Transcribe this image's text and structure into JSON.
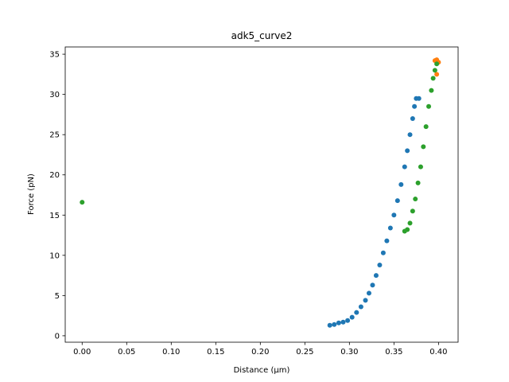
{
  "chart_data": {
    "type": "scatter",
    "title": "adk5_curve2",
    "x_label": "Distance (μm)",
    "y_label": "Force (pN)",
    "xlim": [
      -0.019,
      0.422
    ],
    "ylim": [
      -0.8,
      35.9
    ],
    "xticks": [
      {
        "value": 0,
        "label": "0.00"
      },
      {
        "value": 0.05,
        "label": "0.05"
      },
      {
        "value": 0.1,
        "label": "0.10"
      },
      {
        "value": 0.15,
        "label": "0.15"
      },
      {
        "value": 0.2,
        "label": "0.20"
      },
      {
        "value": 0.25,
        "label": "0.25"
      },
      {
        "value": 0.3,
        "label": "0.30"
      },
      {
        "value": 0.35,
        "label": "0.35"
      },
      {
        "value": 0.4,
        "label": "0.40"
      }
    ],
    "yticks": [
      0,
      5,
      10,
      15,
      20,
      25,
      30,
      35
    ],
    "grid": false,
    "series": [
      {
        "color": "#1f77b4",
        "x": [
          0.278,
          0.283,
          0.288,
          0.293,
          0.298,
          0.303,
          0.308,
          0.313,
          0.318,
          0.322,
          0.326,
          0.33,
          0.334,
          0.338,
          0.342,
          0.346,
          0.35,
          0.354,
          0.358,
          0.362,
          0.365,
          0.368,
          0.371,
          0.373,
          0.375,
          0.378
        ],
        "values": [
          1.3,
          1.4,
          1.6,
          1.7,
          1.9,
          2.3,
          2.9,
          3.6,
          4.4,
          5.3,
          6.3,
          7.5,
          8.8,
          10.3,
          11.8,
          13.4,
          15.0,
          16.8,
          18.8,
          21.0,
          23.0,
          25.0,
          27.0,
          28.5,
          29.5,
          29.5
        ]
      },
      {
        "color": "#ff7f0e",
        "x": [
          0.396,
          0.398,
          0.4,
          0.398
        ],
        "values": [
          34.2,
          34.3,
          34.0,
          32.5
        ]
      },
      {
        "color": "#2ca02c",
        "x": [
          0,
          0.362,
          0.365,
          0.368,
          0.371,
          0.374,
          0.377,
          0.38,
          0.383,
          0.386,
          0.389,
          0.392,
          0.394,
          0.396,
          0.398
        ],
        "values": [
          16.6,
          13.0,
          13.2,
          14.0,
          15.5,
          17.0,
          19.0,
          21.0,
          23.5,
          26.0,
          28.5,
          30.5,
          32.0,
          33.0,
          33.8
        ]
      }
    ]
  }
}
